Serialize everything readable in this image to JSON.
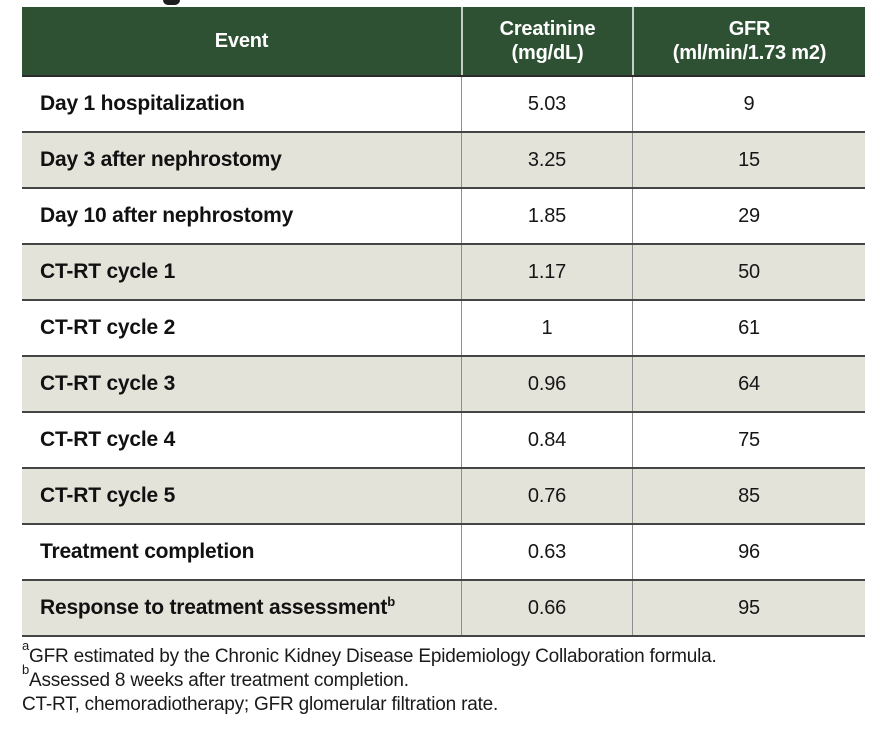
{
  "page": {
    "top_fragment_icon": "cut-off-title-descender"
  },
  "colors": {
    "header_bg": "#2e5133",
    "header_text": "#ffffff",
    "row_alt_bg": "#e4e3da",
    "row_separator": "#454545",
    "column_separator": "#8e8e8e"
  },
  "table": {
    "columns": [
      {
        "label_line1": "Event",
        "label_line2": ""
      },
      {
        "label_line1": "Creatinine",
        "label_line2": "(mg/dL)"
      },
      {
        "label_line1": "GFR",
        "label_line2": "(ml/min/1.73 m2)"
      }
    ],
    "rows": [
      {
        "event": "Day 1 hospitalization",
        "event_sup": "",
        "creatinine": "5.03",
        "gfr": "9"
      },
      {
        "event": "Day 3 after nephrostomy",
        "event_sup": "",
        "creatinine": "3.25",
        "gfr": "15"
      },
      {
        "event": "Day 10 after nephrostomy",
        "event_sup": "",
        "creatinine": "1.85",
        "gfr": "29"
      },
      {
        "event": "CT-RT cycle 1",
        "event_sup": "",
        "creatinine": "1.17",
        "gfr": "50"
      },
      {
        "event": "CT-RT cycle 2",
        "event_sup": "",
        "creatinine": "1",
        "gfr": "61"
      },
      {
        "event": "CT-RT cycle 3",
        "event_sup": "",
        "creatinine": "0.96",
        "gfr": "64"
      },
      {
        "event": "CT-RT cycle 4",
        "event_sup": "",
        "creatinine": "0.84",
        "gfr": "75"
      },
      {
        "event": "CT-RT cycle 5",
        "event_sup": "",
        "creatinine": "0.76",
        "gfr": "85"
      },
      {
        "event": "Treatment completion",
        "event_sup": "",
        "creatinine": "0.63",
        "gfr": "96"
      },
      {
        "event": "Response to treatment assessment",
        "event_sup": "b",
        "creatinine": "0.66",
        "gfr": "95"
      }
    ]
  },
  "footnotes": [
    {
      "sup": "a",
      "text": "GFR estimated by the Chronic Kidney Disease Epidemiology Collaboration formula."
    },
    {
      "sup": "b",
      "text": "Assessed 8 weeks after treatment completion."
    },
    {
      "sup": "",
      "text": "CT-RT, chemoradiotherapy; GFR glomerular filtration rate."
    }
  ]
}
